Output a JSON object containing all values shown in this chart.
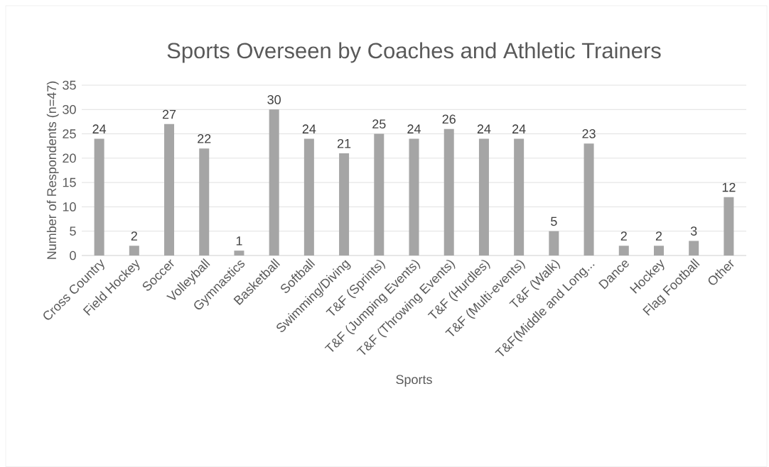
{
  "chart_data": {
    "type": "bar",
    "title": "Sports Overseen by Coaches and Athletic Trainers",
    "xlabel": "Sports",
    "ylabel": "Number of Respondents (n=47)",
    "categories": [
      "Cross Country",
      "Field Hockey",
      "Soccer",
      "Volleyball",
      "Gymnastics",
      "Basketball",
      "Softball",
      "Swimming/Diving",
      "T&F (Sprints)",
      "T&F (Jumping Events)",
      "T&F (Throwing Events)",
      "T&F (Hurdles)",
      "T&F (Multi-events)",
      "T&F (Walk)",
      "T&F(Middle and Long...",
      "Dance",
      "Hockey",
      "Flag Football",
      "Other"
    ],
    "values": [
      24,
      2,
      27,
      22,
      1,
      30,
      24,
      21,
      25,
      24,
      26,
      24,
      24,
      5,
      23,
      2,
      2,
      3,
      12
    ],
    "color": "#a5a5a5",
    "ylim": [
      0,
      35
    ],
    "yticks": [
      0,
      5,
      10,
      15,
      20,
      25,
      30,
      35
    ],
    "grid": "y",
    "data_labels": true
  }
}
